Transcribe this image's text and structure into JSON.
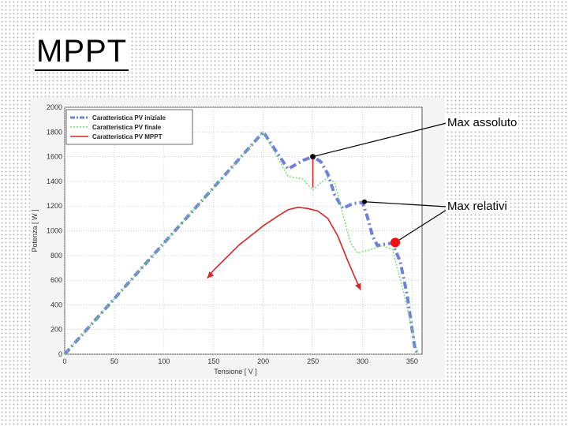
{
  "slide": {
    "title": "MPPT",
    "callout_absolute": "Max assoluto",
    "callout_relative": "Max relativi"
  },
  "chart_data": {
    "type": "line",
    "title": "",
    "xlabel": "Tensione [ V ]",
    "ylabel": "Potenza [ W ]",
    "xlim": [
      0,
      360
    ],
    "ylim": [
      0,
      2000
    ],
    "xticks": [
      0,
      50,
      100,
      150,
      200,
      250,
      300,
      350
    ],
    "yticks": [
      0,
      200,
      400,
      600,
      800,
      1000,
      1200,
      1400,
      1600,
      1800,
      2000
    ],
    "grid": true,
    "legend_position": "top-left",
    "series": [
      {
        "name": "Caratteristica PV iniziale",
        "color": "#6f7fe0",
        "style": "dash-dot-thick",
        "x": [
          0,
          50,
          100,
          150,
          200,
          225,
          240,
          250,
          258,
          265,
          272,
          280,
          290,
          300,
          305,
          310,
          315,
          322,
          330,
          338,
          345,
          350,
          353,
          356
        ],
        "y": [
          0,
          450,
          900,
          1350,
          1800,
          1500,
          1570,
          1600,
          1560,
          1460,
          1290,
          1180,
          1220,
          1230,
          1110,
          960,
          880,
          890,
          900,
          750,
          480,
          200,
          40,
          0
        ]
      },
      {
        "name": "Caratteristica PV finale",
        "color": "#66dd66",
        "style": "dotted",
        "x": [
          0,
          50,
          100,
          150,
          200,
          225,
          240,
          250,
          258,
          265,
          272,
          280,
          288,
          295,
          305,
          320,
          330,
          340,
          350,
          356
        ],
        "y": [
          0,
          450,
          900,
          1350,
          1800,
          1440,
          1420,
          1330,
          1390,
          1430,
          1390,
          1140,
          900,
          820,
          840,
          880,
          850,
          550,
          200,
          0
        ]
      },
      {
        "name": "Caratteristica PV MPPT",
        "color": "#dd2222",
        "style": "solid",
        "x": [
          150,
          175,
          200,
          215,
          225,
          235,
          245,
          255,
          265,
          275,
          285,
          292,
          298
        ],
        "y": [
          680,
          880,
          1040,
          1120,
          1170,
          1190,
          1180,
          1160,
          1100,
          960,
          760,
          630,
          520
        ]
      }
    ],
    "annotations": [
      {
        "label": "Max assoluto",
        "x": 250,
        "y": 1600
      },
      {
        "label": "Max relativi",
        "x": 302,
        "y": 1235
      },
      {
        "label": "Max relativi",
        "x": 333,
        "y": 905
      }
    ]
  }
}
